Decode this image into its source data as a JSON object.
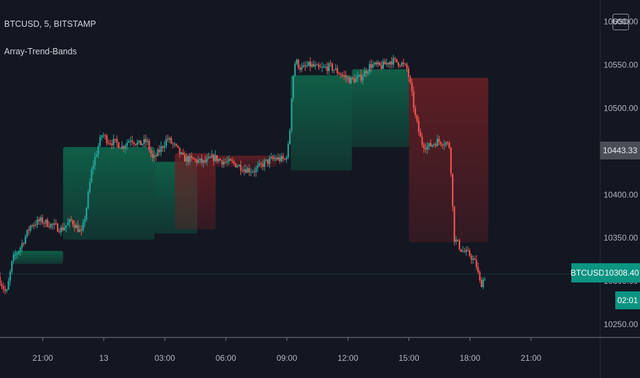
{
  "header": {
    "symbol_line": "BTCUSD, 5, BITSTAMP",
    "indicator": "Array-Trend-Bands"
  },
  "currency_button": "USD",
  "badges": {
    "symbol": "BTCUSD",
    "last_price": "10308.40",
    "countdown": "02:01",
    "reference_price": "10443.33"
  },
  "colors": {
    "background": "#131722",
    "up": "#26a69a",
    "down": "#ef5350",
    "band_up": "#0f6b4d",
    "band_down": "#6b1f24",
    "badge": "#0c9483",
    "axis_text": "#b2b5be"
  },
  "chart_data": {
    "type": "candlestick",
    "title": "BTCUSD, 5, BITSTAMP",
    "indicator": "Array-Trend-Bands",
    "xlabel": "",
    "ylabel": "",
    "x_ticks": [
      "21:00",
      "13",
      "03:00",
      "06:00",
      "09:00",
      "12:00",
      "15:00",
      "18:00",
      "21:00"
    ],
    "x_tick_hours": [
      21,
      24,
      27,
      30,
      33,
      36,
      39,
      42,
      45
    ],
    "y_ticks": [
      10250,
      10300,
      10350,
      10400,
      10450,
      10500,
      10550,
      10600
    ],
    "y_tick_labels": [
      "10250.00",
      "10300.00",
      "10350.00",
      "10400.00",
      "10450.00",
      "10500.00",
      "10550.00",
      "10600.00"
    ],
    "xlim_hours": [
      18.9,
      48.4
    ],
    "ylim": [
      10235,
      10625
    ],
    "grid": false,
    "price_path": [
      [
        18.9,
        10305
      ],
      [
        19.3,
        10285
      ],
      [
        19.6,
        10325
      ],
      [
        20.0,
        10340
      ],
      [
        20.5,
        10365
      ],
      [
        21.0,
        10370
      ],
      [
        21.5,
        10365
      ],
      [
        22.0,
        10360
      ],
      [
        22.5,
        10370
      ],
      [
        23.0,
        10355
      ],
      [
        23.2,
        10380
      ],
      [
        23.5,
        10430
      ],
      [
        23.8,
        10455
      ],
      [
        24.0,
        10470
      ],
      [
        24.3,
        10462
      ],
      [
        24.7,
        10460
      ],
      [
        25.0,
        10455
      ],
      [
        25.4,
        10465
      ],
      [
        25.8,
        10458
      ],
      [
        26.2,
        10462
      ],
      [
        26.5,
        10440
      ],
      [
        26.8,
        10450
      ],
      [
        27.2,
        10465
      ],
      [
        27.6,
        10455
      ],
      [
        28.0,
        10442
      ],
      [
        28.5,
        10440
      ],
      [
        29.0,
        10437
      ],
      [
        29.5,
        10443
      ],
      [
        30.0,
        10438
      ],
      [
        30.5,
        10436
      ],
      [
        31.0,
        10430
      ],
      [
        31.5,
        10428
      ],
      [
        32.0,
        10437
      ],
      [
        32.5,
        10442
      ],
      [
        33.0,
        10440
      ],
      [
        33.2,
        10460
      ],
      [
        33.35,
        10530
      ],
      [
        33.5,
        10555
      ],
      [
        33.8,
        10545
      ],
      [
        34.2,
        10550
      ],
      [
        34.7,
        10545
      ],
      [
        35.2,
        10548
      ],
      [
        35.7,
        10540
      ],
      [
        36.2,
        10532
      ],
      [
        36.7,
        10535
      ],
      [
        37.2,
        10550
      ],
      [
        37.7,
        10548
      ],
      [
        38.2,
        10555
      ],
      [
        38.7,
        10552
      ],
      [
        39.0,
        10545
      ],
      [
        39.2,
        10520
      ],
      [
        39.4,
        10490
      ],
      [
        39.7,
        10460
      ],
      [
        40.0,
        10455
      ],
      [
        40.5,
        10462
      ],
      [
        40.9,
        10460
      ],
      [
        41.1,
        10455
      ],
      [
        41.3,
        10350
      ],
      [
        41.7,
        10335
      ],
      [
        42.1,
        10330
      ],
      [
        42.4,
        10318
      ],
      [
        42.6,
        10295
      ],
      [
        42.8,
        10305
      ]
    ],
    "bands": [
      {
        "trend": "up",
        "x": [
          19.6,
          22.0
        ],
        "top": 10335,
        "bottom": 10320
      },
      {
        "trend": "up",
        "x": [
          22.0,
          26.5
        ],
        "top": 10455,
        "bottom": 10348
      },
      {
        "trend": "up",
        "x": [
          26.5,
          28.6
        ],
        "top": 10438,
        "bottom": 10355
      },
      {
        "trend": "down",
        "x": [
          27.5,
          29.5
        ],
        "top": 10448,
        "bottom": 10360
      },
      {
        "trend": "down",
        "x": [
          29.5,
          32.5
        ],
        "top": 10445,
        "bottom": 10432
      },
      {
        "trend": "up",
        "x": [
          33.2,
          36.2
        ],
        "top": 10538,
        "bottom": 10428
      },
      {
        "trend": "up",
        "x": [
          36.2,
          39.0
        ],
        "top": 10545,
        "bottom": 10455
      },
      {
        "trend": "down",
        "x": [
          39.0,
          42.9
        ],
        "top": 10535,
        "bottom": 10345
      }
    ]
  }
}
